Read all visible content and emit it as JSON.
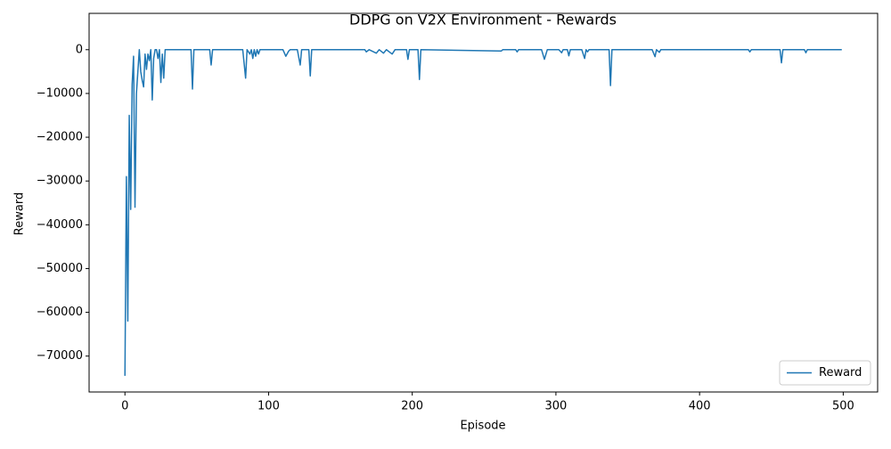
{
  "chart_data": {
    "type": "line",
    "title": "DDPG on V2X Environment - Rewards",
    "x_label": "Episode",
    "y_label": "Reward",
    "x": [
      0,
      1,
      2,
      3,
      4,
      5,
      6,
      7,
      8,
      9,
      10,
      11,
      12,
      13,
      14,
      15,
      16,
      17,
      18,
      19,
      20,
      21,
      22,
      23,
      24,
      25,
      26,
      27,
      28,
      46,
      47,
      48,
      59,
      60,
      61,
      82,
      84,
      85,
      87,
      88,
      89,
      90,
      91,
      92,
      93,
      94,
      110,
      112,
      114,
      115,
      120,
      122,
      123,
      128,
      129,
      130,
      167,
      168,
      170,
      175,
      177,
      180,
      182,
      186,
      188,
      196,
      197,
      198,
      204,
      205,
      206,
      262,
      263,
      272,
      273,
      274,
      290,
      292,
      294,
      302,
      304,
      305,
      308,
      309,
      310,
      318,
      320,
      321,
      322,
      323,
      337,
      338,
      339,
      367,
      369,
      370,
      372,
      373,
      434,
      435,
      436,
      456,
      457,
      458,
      473,
      474,
      475,
      499
    ],
    "series": [
      {
        "name": "Reward",
        "color": "#1f77b4",
        "values": [
          -74500,
          -29000,
          -62000,
          -15000,
          -36500,
          -8000,
          -1500,
          -36000,
          -10000,
          -5000,
          0,
          -5000,
          -7000,
          -8500,
          -1000,
          -4500,
          -1000,
          -2500,
          0,
          -11500,
          -2000,
          0,
          0,
          -2000,
          0,
          -7500,
          -1000,
          -6500,
          0,
          0,
          -9000,
          0,
          0,
          -3500,
          0,
          0,
          -6500,
          0,
          -1000,
          0,
          -2000,
          0,
          -1500,
          0,
          -1000,
          0,
          0,
          -1500,
          -300,
          0,
          0,
          -3500,
          0,
          0,
          -6000,
          0,
          0,
          -500,
          0,
          -800,
          0,
          -800,
          0,
          -1000,
          0,
          0,
          -2200,
          0,
          0,
          -6800,
          0,
          -300,
          0,
          0,
          -500,
          0,
          0,
          -2200,
          0,
          0,
          -700,
          0,
          0,
          -1400,
          0,
          0,
          -2000,
          0,
          -500,
          0,
          0,
          -8200,
          0,
          0,
          -1600,
          0,
          -600,
          0,
          0,
          -500,
          0,
          0,
          -3000,
          0,
          0,
          -700,
          0,
          0
        ]
      }
    ],
    "xlim": [
      -24.95,
      523.95
    ],
    "ylim": [
      -78200,
      8300
    ],
    "xticks": [
      0,
      100,
      200,
      300,
      400,
      500
    ],
    "yticks": [
      {
        "value": -70000,
        "label": "−70000"
      },
      {
        "value": -60000,
        "label": "−60000"
      },
      {
        "value": -50000,
        "label": "−50000"
      },
      {
        "value": -40000,
        "label": "−40000"
      },
      {
        "value": -30000,
        "label": "−30000"
      },
      {
        "value": -20000,
        "label": "−20000"
      },
      {
        "value": -10000,
        "label": "−10000"
      },
      0
    ],
    "legend": "lower right",
    "grid": false
  }
}
